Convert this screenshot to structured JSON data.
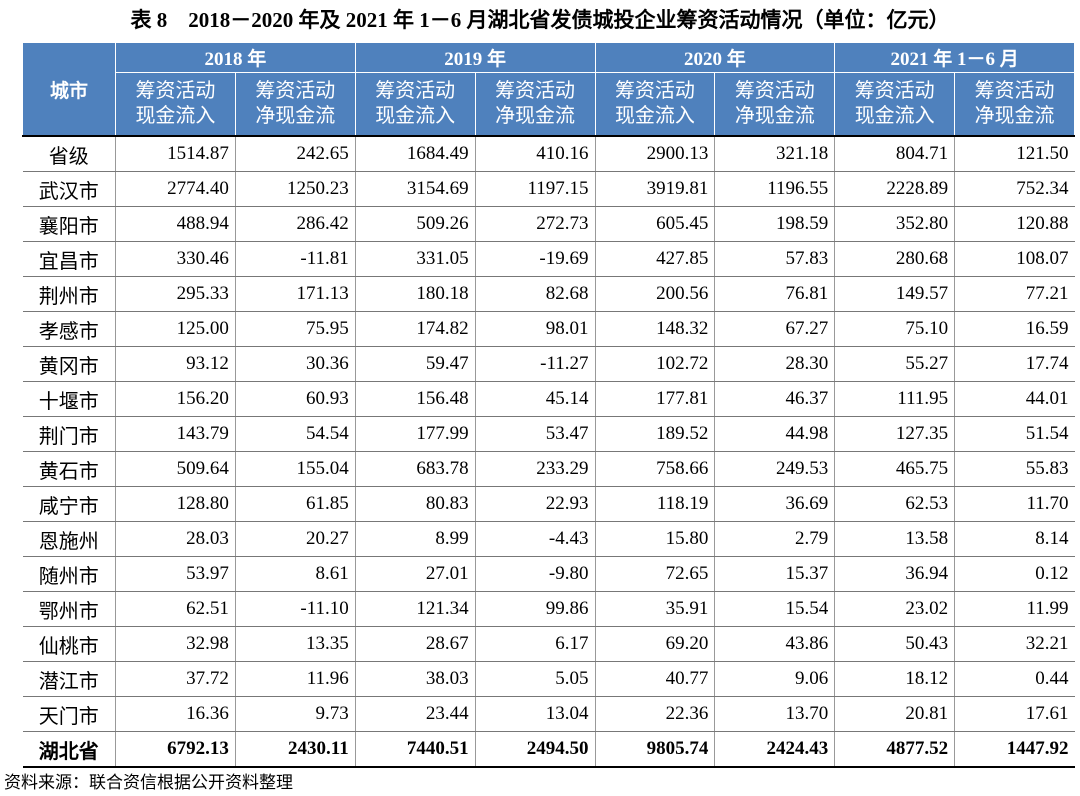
{
  "title": "表 8　2018－2020 年及 2021 年 1－6 月湖北省发债城投企业筹资活动情况（单位：亿元）",
  "header": {
    "city": "城市",
    "years": [
      "2018 年",
      "2019 年",
      "2020 年",
      "2021 年 1－6 月"
    ],
    "subheads": [
      [
        "筹资活动",
        "现金流入"
      ],
      [
        "筹资活动",
        "净现金流"
      ],
      [
        "筹资活动",
        "现金流入"
      ],
      [
        "筹资活动",
        "净现金流"
      ],
      [
        "筹资活动",
        "现金流入"
      ],
      [
        "筹资活动",
        "净现金流"
      ],
      [
        "筹资活动",
        "现金流入"
      ],
      [
        "筹资活动",
        "净现金流"
      ]
    ]
  },
  "table": {
    "rows": [
      [
        "省级",
        "1514.87",
        "242.65",
        "1684.49",
        "410.16",
        "2900.13",
        "321.18",
        "804.71",
        "121.50"
      ],
      [
        "武汉市",
        "2774.40",
        "1250.23",
        "3154.69",
        "1197.15",
        "3919.81",
        "1196.55",
        "2228.89",
        "752.34"
      ],
      [
        "襄阳市",
        "488.94",
        "286.42",
        "509.26",
        "272.73",
        "605.45",
        "198.59",
        "352.80",
        "120.88"
      ],
      [
        "宜昌市",
        "330.46",
        "-11.81",
        "331.05",
        "-19.69",
        "427.85",
        "57.83",
        "280.68",
        "108.07"
      ],
      [
        "荆州市",
        "295.33",
        "171.13",
        "180.18",
        "82.68",
        "200.56",
        "76.81",
        "149.57",
        "77.21"
      ],
      [
        "孝感市",
        "125.00",
        "75.95",
        "174.82",
        "98.01",
        "148.32",
        "67.27",
        "75.10",
        "16.59"
      ],
      [
        "黄冈市",
        "93.12",
        "30.36",
        "59.47",
        "-11.27",
        "102.72",
        "28.30",
        "55.27",
        "17.74"
      ],
      [
        "十堰市",
        "156.20",
        "60.93",
        "156.48",
        "45.14",
        "177.81",
        "46.37",
        "111.95",
        "44.01"
      ],
      [
        "荆门市",
        "143.79",
        "54.54",
        "177.99",
        "53.47",
        "189.52",
        "44.98",
        "127.35",
        "51.54"
      ],
      [
        "黄石市",
        "509.64",
        "155.04",
        "683.78",
        "233.29",
        "758.66",
        "249.53",
        "465.75",
        "55.83"
      ],
      [
        "咸宁市",
        "128.80",
        "61.85",
        "80.83",
        "22.93",
        "118.19",
        "36.69",
        "62.53",
        "11.70"
      ],
      [
        "恩施州",
        "28.03",
        "20.27",
        "8.99",
        "-4.43",
        "15.80",
        "2.79",
        "13.58",
        "8.14"
      ],
      [
        "随州市",
        "53.97",
        "8.61",
        "27.01",
        "-9.80",
        "72.65",
        "15.37",
        "36.94",
        "0.12"
      ],
      [
        "鄂州市",
        "62.51",
        "-11.10",
        "121.34",
        "99.86",
        "35.91",
        "15.54",
        "23.02",
        "11.99"
      ],
      [
        "仙桃市",
        "32.98",
        "13.35",
        "28.67",
        "6.17",
        "69.20",
        "43.86",
        "50.43",
        "32.21"
      ],
      [
        "潜江市",
        "37.72",
        "11.96",
        "38.03",
        "5.05",
        "40.77",
        "9.06",
        "18.12",
        "0.44"
      ],
      [
        "天门市",
        "16.36",
        "9.73",
        "23.44",
        "13.04",
        "22.36",
        "13.70",
        "20.81",
        "17.61"
      ],
      [
        "湖北省",
        "6792.13",
        "2430.11",
        "7440.51",
        "2494.50",
        "9805.74",
        "2424.43",
        "4877.52",
        "1447.92"
      ]
    ]
  },
  "source": "资料来源：联合资信根据公开资料整理"
}
